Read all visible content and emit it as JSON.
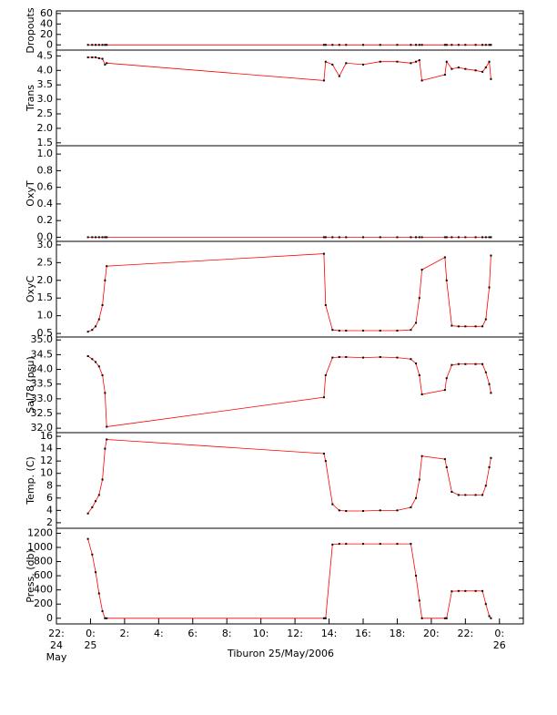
{
  "chart_data": [
    {
      "type": "line",
      "ylabel": "Dropouts",
      "x": [
        -0.15,
        0.1,
        0.3,
        0.5,
        0.7,
        0.85,
        0.95,
        13.7,
        13.8,
        14.2,
        14.6,
        15,
        16,
        17,
        18,
        18.8,
        19.1,
        19.3,
        19.45,
        20.8,
        20.9,
        21.2,
        21.6,
        22,
        22.6,
        23.0,
        23.2,
        23.4,
        23.5
      ],
      "series": [
        {
          "color": "#ff0000",
          "marker_color": "#000000",
          "values": [
            0,
            0,
            0,
            0,
            0,
            0,
            0,
            0,
            0,
            0,
            0,
            0,
            0,
            0,
            0,
            0,
            0,
            0,
            0,
            0,
            0,
            0,
            0,
            0,
            0,
            0,
            0,
            0,
            0
          ]
        }
      ],
      "ylim": [
        -10,
        65
      ],
      "yticks": [
        60,
        40,
        20,
        0
      ]
    },
    {
      "type": "line",
      "ylabel": "Trans",
      "x": [
        -0.15,
        0.1,
        0.3,
        0.5,
        0.7,
        0.85,
        0.95,
        13.7,
        13.8,
        14.2,
        14.6,
        15,
        16,
        17,
        18,
        18.8,
        19.1,
        19.3,
        19.45,
        20.8,
        20.9,
        21.2,
        21.6,
        22,
        22.6,
        23.0,
        23.2,
        23.4,
        23.5
      ],
      "series": [
        {
          "color": "#ff0000",
          "marker_color": "#000000",
          "values": [
            4.45,
            4.45,
            4.45,
            4.42,
            4.4,
            4.2,
            4.25,
            3.65,
            4.3,
            4.2,
            3.8,
            4.25,
            4.2,
            4.3,
            4.3,
            4.25,
            4.3,
            4.35,
            3.65,
            3.85,
            4.3,
            4.05,
            4.1,
            4.05,
            4.0,
            3.95,
            4.1,
            4.3,
            3.7
          ]
        }
      ],
      "ylim": [
        1.4,
        4.7
      ],
      "yticks": [
        4.5,
        {
          "value": 4,
          "label": "4.0"
        },
        3.5,
        {
          "value": 3,
          "label": "3.0"
        },
        2.5,
        {
          "value": 2,
          "label": "2.0"
        },
        1.5
      ]
    },
    {
      "type": "line",
      "ylabel": "OxyT",
      "x": [
        -0.15,
        0.1,
        0.3,
        0.5,
        0.7,
        0.85,
        0.95,
        13.7,
        13.8,
        14.2,
        14.6,
        15,
        16,
        17,
        18,
        18.8,
        19.1,
        19.3,
        19.45,
        20.8,
        20.9,
        21.2,
        21.6,
        22,
        22.6,
        23.0,
        23.2,
        23.4,
        23.5
      ],
      "series": [
        {
          "color": "#ff0000",
          "marker_color": "#000000",
          "values": [
            0,
            0,
            0,
            0,
            0,
            0,
            0,
            0,
            0,
            0,
            0,
            0,
            0,
            0,
            0,
            0,
            0,
            0,
            0,
            0,
            0,
            0,
            0,
            0,
            0,
            0,
            0,
            0,
            0
          ]
        }
      ],
      "ylim": [
        -0.05,
        1.1
      ],
      "yticks": [
        {
          "value": 1,
          "label": "1.0"
        },
        0.8,
        0.6,
        0.4,
        0.2,
        {
          "value": 0,
          "label": "0.0"
        }
      ]
    },
    {
      "type": "line",
      "ylabel": "OxyC",
      "x": [
        -0.15,
        0.1,
        0.3,
        0.5,
        0.7,
        0.85,
        0.95,
        13.7,
        13.8,
        14.2,
        14.6,
        15,
        16,
        17,
        18,
        18.8,
        19.1,
        19.3,
        19.45,
        20.8,
        20.9,
        21.2,
        21.6,
        22,
        22.6,
        23.0,
        23.2,
        23.4,
        23.5
      ],
      "series": [
        {
          "color": "#ff0000",
          "marker_color": "#000000",
          "values": [
            0.55,
            0.6,
            0.7,
            0.9,
            1.3,
            2.0,
            2.4,
            2.75,
            1.3,
            0.6,
            0.58,
            0.58,
            0.58,
            0.58,
            0.58,
            0.6,
            0.8,
            1.5,
            2.3,
            2.65,
            2.0,
            0.72,
            0.7,
            0.7,
            0.7,
            0.7,
            0.9,
            1.8,
            2.7
          ]
        }
      ],
      "ylim": [
        0.4,
        3.1
      ],
      "yticks": [
        {
          "value": 3,
          "label": "3.0"
        },
        2.5,
        {
          "value": 2,
          "label": "2.0"
        },
        1.5,
        {
          "value": 1,
          "label": "1.0"
        },
        0.5
      ]
    },
    {
      "type": "line",
      "ylabel": "Sal78 (psu)",
      "x": [
        -0.15,
        0.1,
        0.3,
        0.5,
        0.7,
        0.85,
        0.95,
        13.7,
        13.8,
        14.2,
        14.6,
        15,
        16,
        17,
        18,
        18.8,
        19.1,
        19.3,
        19.45,
        20.8,
        20.9,
        21.2,
        21.6,
        22,
        22.6,
        23.0,
        23.2,
        23.4,
        23.5
      ],
      "series": [
        {
          "color": "#ff0000",
          "marker_color": "#000000",
          "values": [
            34.45,
            34.35,
            34.25,
            34.1,
            33.8,
            33.2,
            32.05,
            33.05,
            33.8,
            34.4,
            34.42,
            34.42,
            34.4,
            34.42,
            34.4,
            34.35,
            34.2,
            33.8,
            33.15,
            33.3,
            33.7,
            34.15,
            34.18,
            34.18,
            34.18,
            34.18,
            33.9,
            33.5,
            33.2
          ]
        }
      ],
      "ylim": [
        31.85,
        35.1
      ],
      "yticks": [
        {
          "value": 35,
          "label": "35.0"
        },
        34.5,
        {
          "value": 34,
          "label": "34.0"
        },
        33.5,
        {
          "value": 33,
          "label": "33.0"
        },
        32.5,
        {
          "value": 32,
          "label": "32.0"
        }
      ]
    },
    {
      "type": "line",
      "ylabel": "Temp. (C)",
      "x": [
        -0.15,
        0.1,
        0.3,
        0.5,
        0.7,
        0.85,
        0.95,
        13.7,
        13.8,
        14.2,
        14.6,
        15,
        16,
        17,
        18,
        18.8,
        19.1,
        19.3,
        19.45,
        20.8,
        20.9,
        21.2,
        21.6,
        22,
        22.6,
        23.0,
        23.2,
        23.4,
        23.5
      ],
      "series": [
        {
          "color": "#ff0000",
          "marker_color": "#000000",
          "values": [
            3.5,
            4.5,
            5.5,
            6.5,
            9,
            14,
            15.5,
            13.2,
            12,
            5,
            4,
            3.9,
            3.9,
            4,
            4,
            4.5,
            6,
            9,
            12.8,
            12.3,
            11,
            7,
            6.5,
            6.5,
            6.5,
            6.5,
            8,
            11,
            12.5
          ]
        }
      ],
      "ylim": [
        1.1,
        16.6
      ],
      "yticks": [
        16,
        14,
        12,
        10,
        8,
        6,
        4,
        2
      ]
    },
    {
      "type": "line",
      "ylabel": "Press. (db)",
      "xlabel": "Tiburon 25/May/2006",
      "x": [
        -0.15,
        0.1,
        0.3,
        0.5,
        0.7,
        0.85,
        0.95,
        13.7,
        13.8,
        14.2,
        14.6,
        15,
        16,
        17,
        18,
        18.8,
        19.1,
        19.3,
        19.45,
        20.8,
        20.9,
        21.2,
        21.6,
        22,
        22.6,
        23.0,
        23.2,
        23.4,
        23.5
      ],
      "series": [
        {
          "color": "#ff0000",
          "marker_color": "#000000",
          "values": [
            1120,
            900,
            650,
            350,
            100,
            0,
            0,
            0,
            0,
            1040,
            1050,
            1050,
            1050,
            1050,
            1050,
            1050,
            600,
            250,
            0,
            0,
            0,
            380,
            385,
            385,
            385,
            385,
            200,
            30,
            0
          ]
        }
      ],
      "ylim": [
        -80,
        1270
      ],
      "yticks": [
        1200,
        1000,
        800,
        600,
        400,
        200,
        0
      ],
      "xlim": [
        -2,
        25.4
      ],
      "xticks": [
        {
          "value": -2,
          "label": "22:\n24\nMay"
        },
        {
          "value": 0,
          "label": "0:\n25"
        },
        {
          "value": 2,
          "label": "2:"
        },
        {
          "value": 4,
          "label": "4:"
        },
        {
          "value": 6,
          "label": "6:"
        },
        {
          "value": 8,
          "label": "8:"
        },
        {
          "value": 10,
          "label": "10:"
        },
        {
          "value": 12,
          "label": "12:"
        },
        {
          "value": 14,
          "label": "14:"
        },
        {
          "value": 16,
          "label": "16:"
        },
        {
          "value": 18,
          "label": "18:"
        },
        {
          "value": 20,
          "label": "20:"
        },
        {
          "value": 22,
          "label": "22:"
        },
        {
          "value": 24,
          "label": "0:\n26"
        }
      ]
    }
  ]
}
